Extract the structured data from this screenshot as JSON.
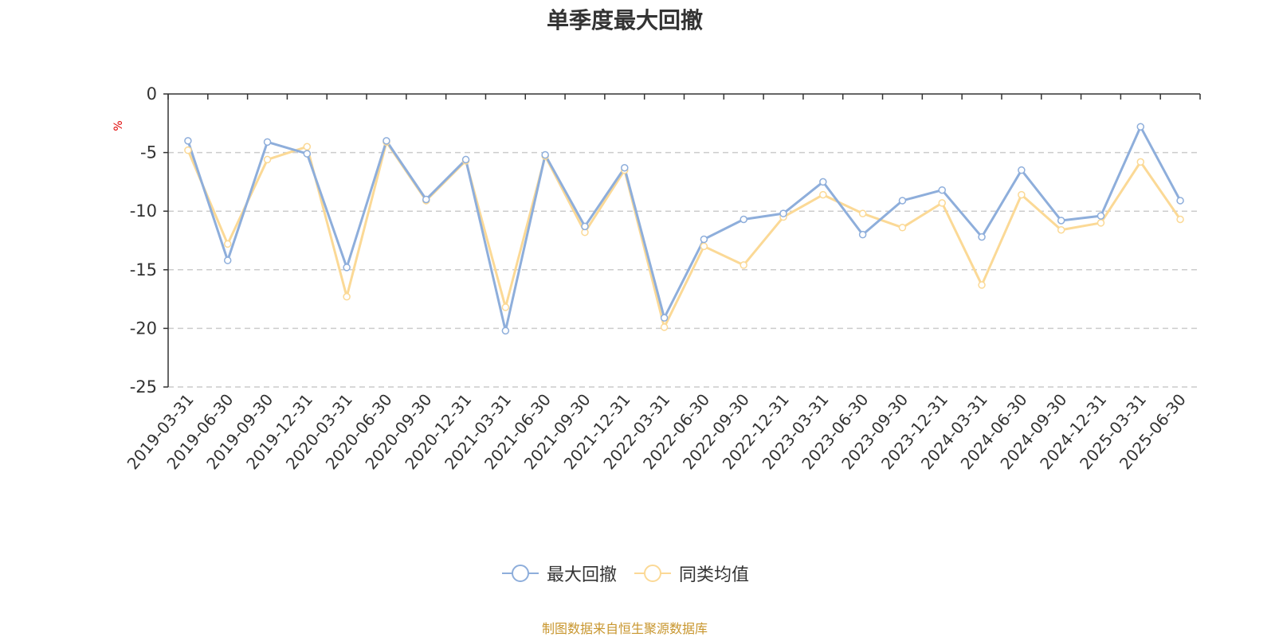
{
  "chart_data": {
    "type": "line",
    "title": "单季度最大回撤",
    "ylabel": "%",
    "ylim": [
      -25,
      0
    ],
    "yticks": [
      0,
      -5,
      -10,
      -15,
      -20,
      -25
    ],
    "grid": true,
    "legend_position": "bottom-center",
    "categories": [
      "2019-03-31",
      "2019-06-30",
      "2019-09-30",
      "2019-12-31",
      "2020-03-31",
      "2020-06-30",
      "2020-09-30",
      "2020-12-31",
      "2021-03-31",
      "2021-06-30",
      "2021-09-30",
      "2021-12-31",
      "2022-03-31",
      "2022-06-30",
      "2022-09-30",
      "2022-12-31",
      "2023-03-31",
      "2023-06-30",
      "2023-09-30",
      "2023-12-31",
      "2024-03-31",
      "2024-06-30",
      "2024-09-30",
      "2024-12-31",
      "2025-03-31",
      "2025-06-30"
    ],
    "series": [
      {
        "name": "最大回撤",
        "color": "#8eaedb",
        "values": [
          -4.0,
          -14.2,
          -4.1,
          -5.1,
          -14.8,
          -4.0,
          -9.0,
          -5.6,
          -20.2,
          -5.2,
          -11.3,
          -6.3,
          -19.1,
          -12.4,
          -10.7,
          -10.2,
          -7.5,
          -12.0,
          -9.1,
          -8.2,
          -12.2,
          -6.5,
          -10.8,
          -10.4,
          -2.8,
          -9.1
        ]
      },
      {
        "name": "同类均值",
        "color": "#fbd996",
        "values": [
          -4.8,
          -12.8,
          -5.6,
          -4.5,
          -17.3,
          -4.1,
          -9.1,
          -5.7,
          -18.2,
          -5.3,
          -11.8,
          -6.5,
          -19.9,
          -13.0,
          -14.6,
          -10.5,
          -8.6,
          -10.2,
          -11.4,
          -9.3,
          -16.3,
          -8.6,
          -11.6,
          -11.0,
          -5.8,
          -10.7
        ]
      }
    ],
    "source_note": "制图数据来自恒生聚源数据库",
    "source_note_color": "#c8962e",
    "ylabel_color": "#e00000"
  }
}
